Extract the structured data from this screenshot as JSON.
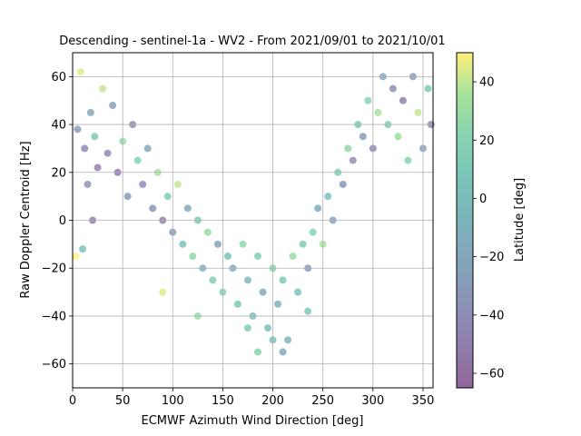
{
  "chart_data": {
    "type": "scatter",
    "title": "Descending - sentinel-1a - WV2 - From 2021/09/01 to 2021/10/01",
    "xlabel": "ECMWF Azimuth Wind Direction [deg]",
    "ylabel": "Raw Doppler Centroid [Hz]",
    "xlim": [
      0,
      360
    ],
    "ylim": [
      -70,
      70
    ],
    "x_ticks": [
      "0",
      "50",
      "100",
      "150",
      "200",
      "250",
      "300",
      "350"
    ],
    "y_ticks": [
      "−60",
      "−40",
      "−20",
      "0",
      "20",
      "40",
      "60"
    ],
    "grid": true,
    "colorbar": {
      "label": "Latitude [deg]",
      "range": [
        -65,
        50
      ],
      "ticks": [
        "−60",
        "−40",
        "−20",
        "0",
        "20",
        "40"
      ],
      "colormap": "viridis"
    },
    "marker_alpha": 0.5,
    "point_colors_by": "Latitude [deg]",
    "distribution": "V-shaped: Doppler high (about 20 to 60 Hz) near 0 and 360 deg, minimum (about -20 Hz, down to -55 Hz) near 180-200 deg",
    "series": [
      {
        "points": [
          [
            5,
            38,
            -30
          ],
          [
            12,
            30,
            -45
          ],
          [
            18,
            45,
            -20
          ],
          [
            25,
            22,
            -50
          ],
          [
            30,
            55,
            40
          ],
          [
            8,
            62,
            45
          ],
          [
            15,
            15,
            -35
          ],
          [
            22,
            35,
            10
          ],
          [
            35,
            28,
            -40
          ],
          [
            40,
            48,
            -25
          ],
          [
            45,
            20,
            -55
          ],
          [
            50,
            33,
            30
          ],
          [
            55,
            10,
            -30
          ],
          [
            60,
            40,
            -45
          ],
          [
            65,
            25,
            20
          ],
          [
            70,
            15,
            -40
          ],
          [
            75,
            30,
            -20
          ],
          [
            80,
            5,
            -35
          ],
          [
            85,
            20,
            35
          ],
          [
            90,
            0,
            -50
          ],
          [
            95,
            10,
            15
          ],
          [
            100,
            -5,
            -30
          ],
          [
            105,
            15,
            40
          ],
          [
            110,
            -10,
            5
          ],
          [
            115,
            5,
            -20
          ],
          [
            120,
            -15,
            25
          ],
          [
            125,
            0,
            10
          ],
          [
            130,
            -20,
            -10
          ],
          [
            135,
            -5,
            30
          ],
          [
            140,
            -25,
            15
          ],
          [
            145,
            -10,
            -25
          ],
          [
            150,
            -30,
            20
          ],
          [
            155,
            -15,
            5
          ],
          [
            160,
            -20,
            -15
          ],
          [
            165,
            -35,
            10
          ],
          [
            170,
            -10,
            25
          ],
          [
            175,
            -25,
            -5
          ],
          [
            180,
            -40,
            0
          ],
          [
            185,
            -15,
            15
          ],
          [
            190,
            -30,
            -20
          ],
          [
            195,
            -45,
            5
          ],
          [
            200,
            -20,
            20
          ],
          [
            205,
            -35,
            -10
          ],
          [
            210,
            -25,
            10
          ],
          [
            215,
            -50,
            -5
          ],
          [
            220,
            -15,
            30
          ],
          [
            225,
            -30,
            0
          ],
          [
            230,
            -10,
            15
          ],
          [
            235,
            -20,
            -30
          ],
          [
            240,
            -5,
            20
          ],
          [
            245,
            5,
            -15
          ],
          [
            250,
            -10,
            35
          ],
          [
            255,
            10,
            5
          ],
          [
            260,
            0,
            -25
          ],
          [
            265,
            20,
            15
          ],
          [
            270,
            15,
            -35
          ],
          [
            275,
            30,
            25
          ],
          [
            280,
            25,
            -40
          ],
          [
            285,
            40,
            10
          ],
          [
            290,
            35,
            -30
          ],
          [
            295,
            50,
            20
          ],
          [
            300,
            30,
            -45
          ],
          [
            305,
            45,
            35
          ],
          [
            310,
            60,
            -20
          ],
          [
            315,
            40,
            15
          ],
          [
            320,
            55,
            -40
          ],
          [
            325,
            35,
            30
          ],
          [
            330,
            50,
            -50
          ],
          [
            335,
            25,
            20
          ],
          [
            340,
            60,
            -30
          ],
          [
            345,
            45,
            40
          ],
          [
            350,
            30,
            -25
          ],
          [
            355,
            55,
            10
          ],
          [
            358,
            40,
            -45
          ],
          [
            3,
            -15,
            50
          ],
          [
            10,
            -12,
            5
          ],
          [
            20,
            0,
            -50
          ],
          [
            185,
            -55,
            20
          ],
          [
            200,
            -50,
            0
          ],
          [
            175,
            -45,
            15
          ],
          [
            90,
            -30,
            45
          ],
          [
            125,
            -40,
            30
          ],
          [
            235,
            -38,
            10
          ],
          [
            210,
            -55,
            -20
          ]
        ]
      }
    ]
  }
}
